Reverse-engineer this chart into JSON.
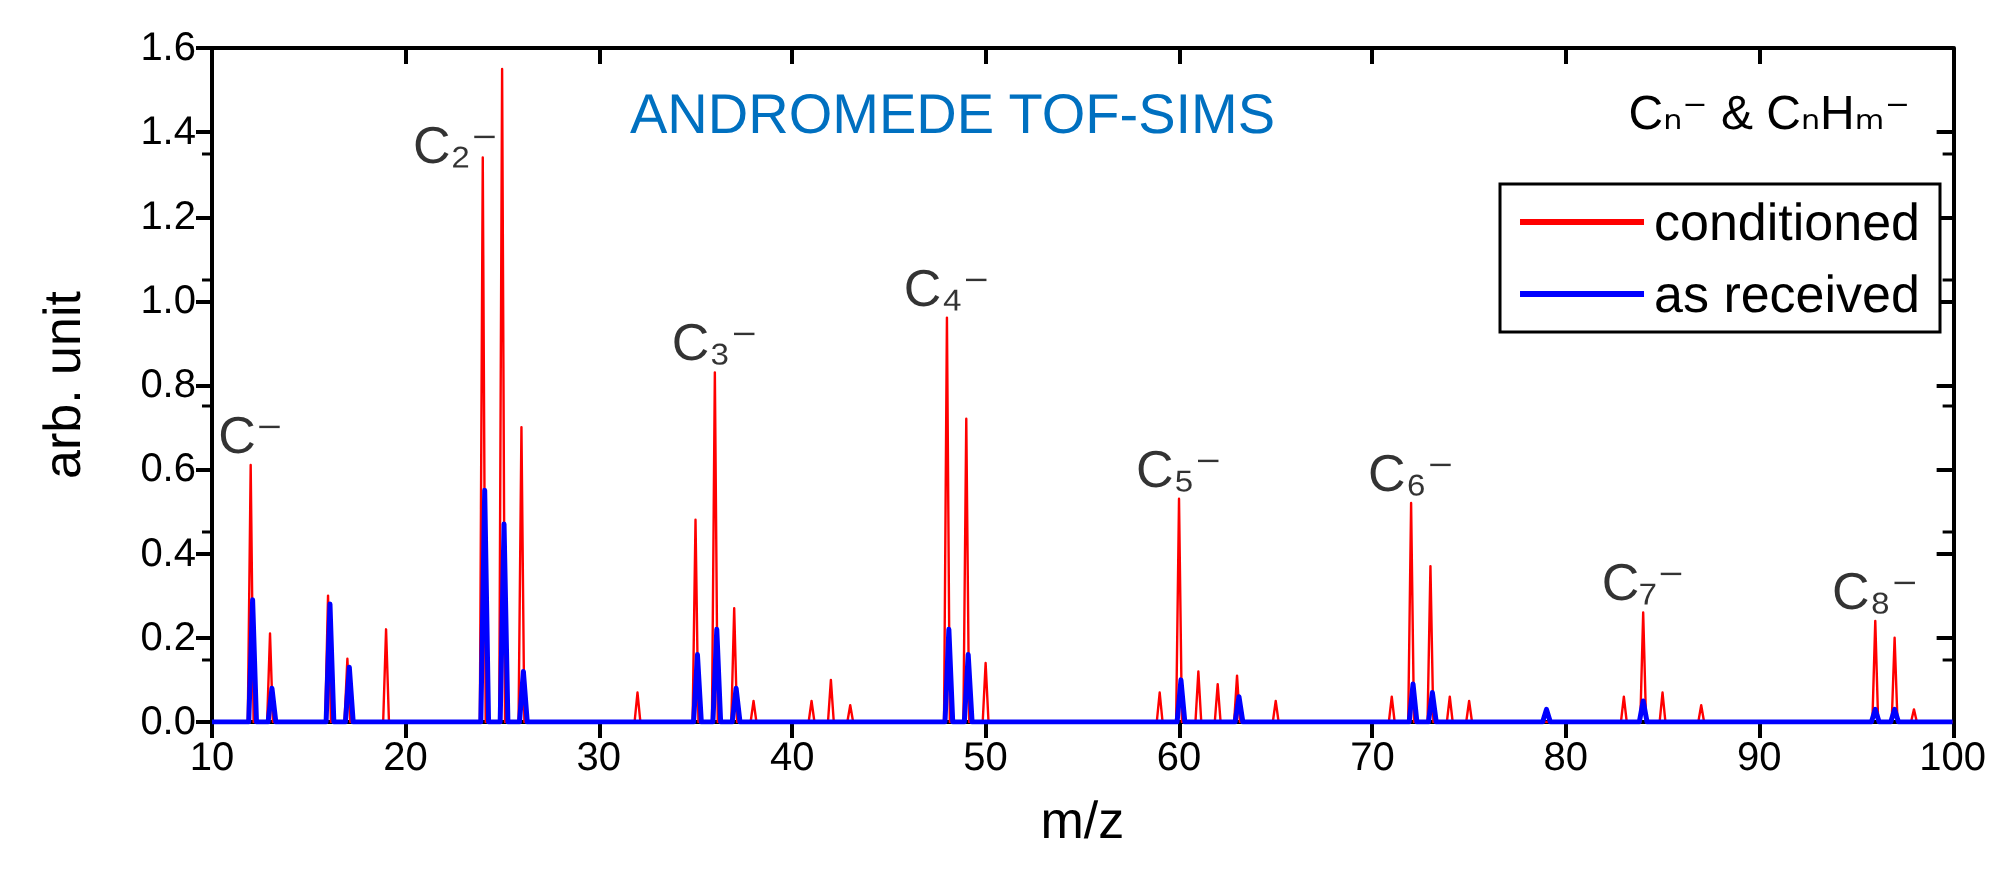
{
  "chart_data": {
    "type": "line",
    "title": "ANDROMEDE TOF-SIMS",
    "subtitle": "Cₙ⁻ & CₙHₘ⁻",
    "xlabel": "m/z",
    "ylabel": "arb. unit",
    "xlim": [
      10,
      100
    ],
    "xticks": [
      10,
      20,
      30,
      40,
      50,
      60,
      70,
      80,
      90,
      100
    ],
    "ylim": [
      0,
      1.6
    ],
    "yticks": [
      {
        "value": 0,
        "label": "0.0"
      },
      {
        "value": 0.2,
        "label": "0.2"
      },
      {
        "value": 0.4,
        "label": "0.4"
      },
      {
        "value": 0.6,
        "label": "0.6"
      },
      {
        "value": 0.8,
        "label": "0.8"
      },
      {
        "value": 1,
        "label": "1.0"
      },
      {
        "value": 1.2,
        "label": "1.2"
      },
      {
        "value": 1.4,
        "label": "1.4"
      },
      {
        "value": 1.6,
        "label": "1.6"
      }
    ],
    "grid": false,
    "legend": "top right",
    "marker": "none",
    "line_style": "solid",
    "series": [
      {
        "name": "conditioned",
        "color": "#ff0000",
        "x": [
          10,
          11.85,
          12,
          12.15,
          12.85,
          13,
          13.15,
          15.85,
          16,
          16.15,
          16.85,
          17,
          17.15,
          18.85,
          19,
          19.15,
          23.85,
          24,
          24.15,
          24.85,
          25,
          25.15,
          25.85,
          26,
          26.15,
          31.85,
          32,
          32.15,
          34.85,
          35,
          35.15,
          35.85,
          36,
          36.15,
          36.85,
          37,
          37.15,
          37.85,
          38,
          38.15,
          40.85,
          41,
          41.15,
          41.85,
          42,
          42.15,
          42.85,
          43,
          43.15,
          47.85,
          48,
          48.15,
          48.85,
          49,
          49.15,
          49.85,
          50,
          50.15,
          58.85,
          59,
          59.15,
          59.85,
          60,
          60.15,
          60.85,
          61,
          61.15,
          61.85,
          62,
          62.15,
          62.85,
          63,
          63.15,
          64.85,
          65,
          65.15,
          70.85,
          71,
          71.15,
          71.85,
          72,
          72.15,
          72.85,
          73,
          73.15,
          73.85,
          74,
          74.15,
          74.85,
          75,
          75.15,
          82.85,
          83,
          83.15,
          83.85,
          84,
          84.15,
          84.85,
          85,
          85.15,
          86.85,
          87,
          87.15,
          95.85,
          96,
          96.15,
          96.85,
          97,
          97.15,
          97.85,
          98,
          98.15,
          100
        ],
        "values": [
          0,
          0,
          0.61,
          0,
          0,
          0.21,
          0,
          0,
          0.3,
          0,
          0,
          0.15,
          0,
          0,
          0.22,
          0,
          0,
          1.34,
          0,
          0,
          1.55,
          0,
          0,
          0.7,
          0,
          0,
          0.07,
          0,
          0,
          0.48,
          0,
          0,
          0.83,
          0,
          0,
          0.27,
          0,
          0,
          0.05,
          0,
          0,
          0.05,
          0,
          0,
          0.1,
          0,
          0,
          0.04,
          0,
          0,
          0.96,
          0,
          0,
          0.72,
          0,
          0,
          0.14,
          0,
          0,
          0.07,
          0,
          0,
          0.53,
          0,
          0,
          0.12,
          0,
          0,
          0.09,
          0,
          0,
          0.11,
          0,
          0,
          0.05,
          0,
          0,
          0.06,
          0,
          0,
          0.52,
          0,
          0,
          0.37,
          0,
          0,
          0.06,
          0,
          0,
          0.05,
          0,
          0,
          0.06,
          0,
          0,
          0.26,
          0,
          0,
          0.07,
          0,
          0,
          0.04,
          0,
          0,
          0.24,
          0,
          0,
          0.2,
          0,
          0,
          0.03,
          0,
          0
        ]
      },
      {
        "name": "as received",
        "color": "#0000ff",
        "x": [
          10,
          11.9,
          12.1,
          12.3,
          12.9,
          13.1,
          13.3,
          15.9,
          16.1,
          16.3,
          16.9,
          17.1,
          17.3,
          23.9,
          24.1,
          24.3,
          24.9,
          25.1,
          25.3,
          25.9,
          26.1,
          26.3,
          34.9,
          35.1,
          35.3,
          35.9,
          36.1,
          36.3,
          36.9,
          37.1,
          37.3,
          47.9,
          48.1,
          48.3,
          48.9,
          49.1,
          49.3,
          59.9,
          60.1,
          60.3,
          62.9,
          63.1,
          63.3,
          71.9,
          72.1,
          72.3,
          72.9,
          73.1,
          73.3,
          78.8,
          79,
          79.2,
          83.8,
          84,
          84.2,
          95.8,
          96,
          96.2,
          96.8,
          97,
          97.2,
          100
        ],
        "values": [
          0,
          0,
          0.29,
          0,
          0,
          0.08,
          0,
          0,
          0.28,
          0,
          0,
          0.13,
          0,
          0,
          0.55,
          0,
          0,
          0.47,
          0,
          0,
          0.12,
          0,
          0,
          0.16,
          0,
          0,
          0.22,
          0,
          0,
          0.08,
          0,
          0,
          0.22,
          0,
          0,
          0.16,
          0,
          0,
          0.1,
          0,
          0,
          0.06,
          0,
          0,
          0.09,
          0,
          0,
          0.07,
          0,
          0,
          0.03,
          0,
          0,
          0.05,
          0,
          0,
          0.03,
          0,
          0,
          0.03,
          0,
          0
        ]
      }
    ],
    "annotations": [
      {
        "text": "C⁻",
        "x": 12,
        "y": 0.61
      },
      {
        "text": "C₂⁻",
        "x": 25,
        "y": 1.55
      },
      {
        "text": "C₃⁻",
        "x": 36,
        "y": 0.83
      },
      {
        "text": "C₄⁻",
        "x": 48,
        "y": 0.96
      },
      {
        "text": "C₅⁻",
        "x": 60,
        "y": 0.53
      },
      {
        "text": "C₆⁻",
        "x": 72,
        "y": 0.52
      },
      {
        "text": "C₇⁻",
        "x": 84,
        "y": 0.26
      },
      {
        "text": "C₈⁻",
        "x": 96,
        "y": 0.24
      }
    ]
  }
}
